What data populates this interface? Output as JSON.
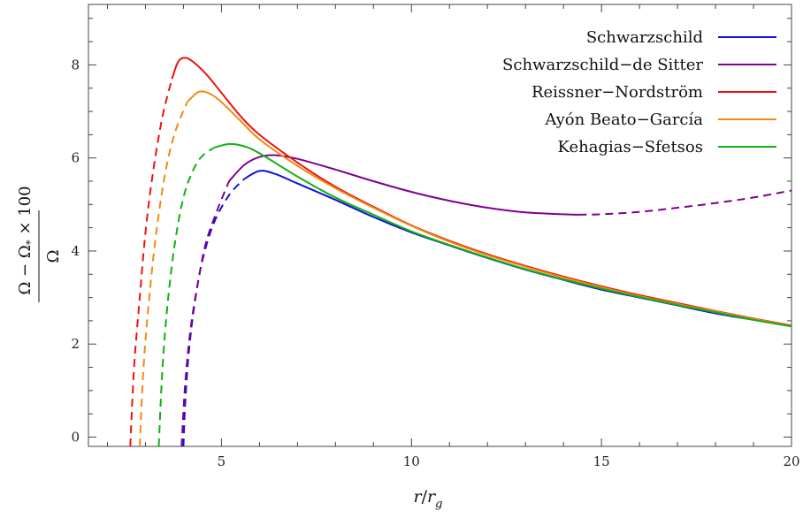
{
  "chart_data": {
    "type": "line",
    "xlabel": "r/r_g",
    "ylabel": "(Ω − Ω_*)/Ω × 100",
    "xlim": [
      1.5,
      20
    ],
    "ylim": [
      -0.2,
      9.3
    ],
    "x_ticks": [
      5,
      10,
      15,
      20
    ],
    "y_ticks": [
      0,
      2,
      4,
      6,
      8
    ],
    "legend_position": "top-right",
    "series": [
      {
        "name": "Schwarzschild",
        "color": "#1010e0",
        "dashed": [
          [
            4.0,
            -0.2
          ],
          [
            4.05,
            0.8
          ],
          [
            4.15,
            1.9
          ],
          [
            4.3,
            2.9
          ],
          [
            4.5,
            3.8
          ],
          [
            4.8,
            4.6
          ],
          [
            5.2,
            5.2
          ],
          [
            5.6,
            5.55
          ]
        ],
        "solid": [
          [
            5.6,
            5.55
          ],
          [
            6.0,
            5.72
          ],
          [
            6.4,
            5.66
          ],
          [
            7.0,
            5.45
          ],
          [
            8.0,
            5.1
          ],
          [
            9.0,
            4.73
          ],
          [
            10.0,
            4.4
          ],
          [
            11.0,
            4.12
          ],
          [
            12.0,
            3.85
          ],
          [
            13.0,
            3.6
          ],
          [
            14.0,
            3.38
          ],
          [
            15.0,
            3.17
          ],
          [
            16.0,
            3.0
          ],
          [
            17.0,
            2.83
          ],
          [
            18.0,
            2.66
          ],
          [
            19.0,
            2.52
          ],
          [
            20.0,
            2.38
          ]
        ]
      },
      {
        "name": "Schwarzschild−de Sitter",
        "color": "#800090",
        "dashed": [
          [
            3.95,
            -0.2
          ],
          [
            4.05,
            1.2
          ],
          [
            4.2,
            2.4
          ],
          [
            4.4,
            3.4
          ],
          [
            4.6,
            4.2
          ],
          [
            4.9,
            4.9
          ],
          [
            5.2,
            5.5
          ]
        ],
        "solid": [
          [
            5.2,
            5.5
          ],
          [
            5.6,
            5.85
          ],
          [
            6.0,
            6.02
          ],
          [
            6.4,
            6.06
          ],
          [
            7.0,
            5.98
          ],
          [
            8.0,
            5.75
          ],
          [
            9.0,
            5.5
          ],
          [
            10.0,
            5.27
          ],
          [
            11.0,
            5.08
          ],
          [
            12.0,
            4.93
          ],
          [
            13.0,
            4.83
          ],
          [
            14.0,
            4.79
          ],
          [
            14.4,
            4.78
          ]
        ],
        "dashed_tail": [
          [
            14.4,
            4.78
          ],
          [
            15.0,
            4.79
          ],
          [
            16.0,
            4.84
          ],
          [
            17.0,
            4.93
          ],
          [
            18.0,
            5.03
          ],
          [
            19.0,
            5.15
          ],
          [
            20.0,
            5.3
          ]
        ]
      },
      {
        "name": "Reissner−Nordström",
        "color": "#ee1111",
        "dashed": [
          [
            2.6,
            -0.2
          ],
          [
            2.7,
            1.5
          ],
          [
            2.85,
            3.0
          ],
          [
            3.0,
            4.4
          ],
          [
            3.2,
            5.7
          ],
          [
            3.45,
            6.9
          ],
          [
            3.7,
            7.7
          ]
        ],
        "solid": [
          [
            3.7,
            7.7
          ],
          [
            3.85,
            8.05
          ],
          [
            4.0,
            8.15
          ],
          [
            4.2,
            8.1
          ],
          [
            4.6,
            7.8
          ],
          [
            5.0,
            7.4
          ],
          [
            5.5,
            6.9
          ],
          [
            6.0,
            6.5
          ],
          [
            7.0,
            5.9
          ],
          [
            8.0,
            5.38
          ],
          [
            9.0,
            4.95
          ],
          [
            10.0,
            4.55
          ],
          [
            11.0,
            4.22
          ],
          [
            12.0,
            3.93
          ],
          [
            13.0,
            3.68
          ],
          [
            14.0,
            3.45
          ],
          [
            15.0,
            3.24
          ],
          [
            16.0,
            3.05
          ],
          [
            17.0,
            2.88
          ],
          [
            18.0,
            2.71
          ],
          [
            19.0,
            2.55
          ],
          [
            20.0,
            2.4
          ]
        ]
      },
      {
        "name": "Ayón Beato−García",
        "color": "#f28a10",
        "dashed": [
          [
            2.85,
            -0.2
          ],
          [
            2.95,
            1.5
          ],
          [
            3.1,
            3.0
          ],
          [
            3.3,
            4.5
          ],
          [
            3.55,
            5.8
          ],
          [
            3.8,
            6.6
          ],
          [
            4.1,
            7.2
          ]
        ],
        "solid": [
          [
            4.1,
            7.2
          ],
          [
            4.4,
            7.42
          ],
          [
            4.7,
            7.38
          ],
          [
            5.0,
            7.2
          ],
          [
            5.5,
            6.8
          ],
          [
            6.0,
            6.4
          ],
          [
            7.0,
            5.83
          ],
          [
            8.0,
            5.35
          ],
          [
            9.0,
            4.93
          ],
          [
            10.0,
            4.54
          ],
          [
            11.0,
            4.2
          ],
          [
            12.0,
            3.91
          ],
          [
            13.0,
            3.66
          ],
          [
            14.0,
            3.43
          ],
          [
            15.0,
            3.22
          ],
          [
            16.0,
            3.03
          ],
          [
            17.0,
            2.86
          ],
          [
            18.0,
            2.7
          ],
          [
            19.0,
            2.54
          ],
          [
            20.0,
            2.39
          ]
        ]
      },
      {
        "name": "Kehagias−Sfetsos",
        "color": "#10b010",
        "dashed": [
          [
            3.35,
            -0.2
          ],
          [
            3.45,
            1.5
          ],
          [
            3.6,
            3.0
          ],
          [
            3.8,
            4.3
          ],
          [
            4.05,
            5.3
          ],
          [
            4.4,
            5.95
          ],
          [
            4.8,
            6.22
          ]
        ],
        "solid": [
          [
            4.8,
            6.22
          ],
          [
            5.2,
            6.3
          ],
          [
            5.6,
            6.25
          ],
          [
            6.0,
            6.1
          ],
          [
            7.0,
            5.6
          ],
          [
            8.0,
            5.15
          ],
          [
            9.0,
            4.78
          ],
          [
            10.0,
            4.42
          ],
          [
            11.0,
            4.13
          ],
          [
            12.0,
            3.86
          ],
          [
            13.0,
            3.61
          ],
          [
            14.0,
            3.39
          ],
          [
            15.0,
            3.19
          ],
          [
            16.0,
            3.01
          ],
          [
            17.0,
            2.84
          ],
          [
            18.0,
            2.68
          ],
          [
            19.0,
            2.52
          ],
          [
            20.0,
            2.38
          ]
        ]
      }
    ]
  }
}
